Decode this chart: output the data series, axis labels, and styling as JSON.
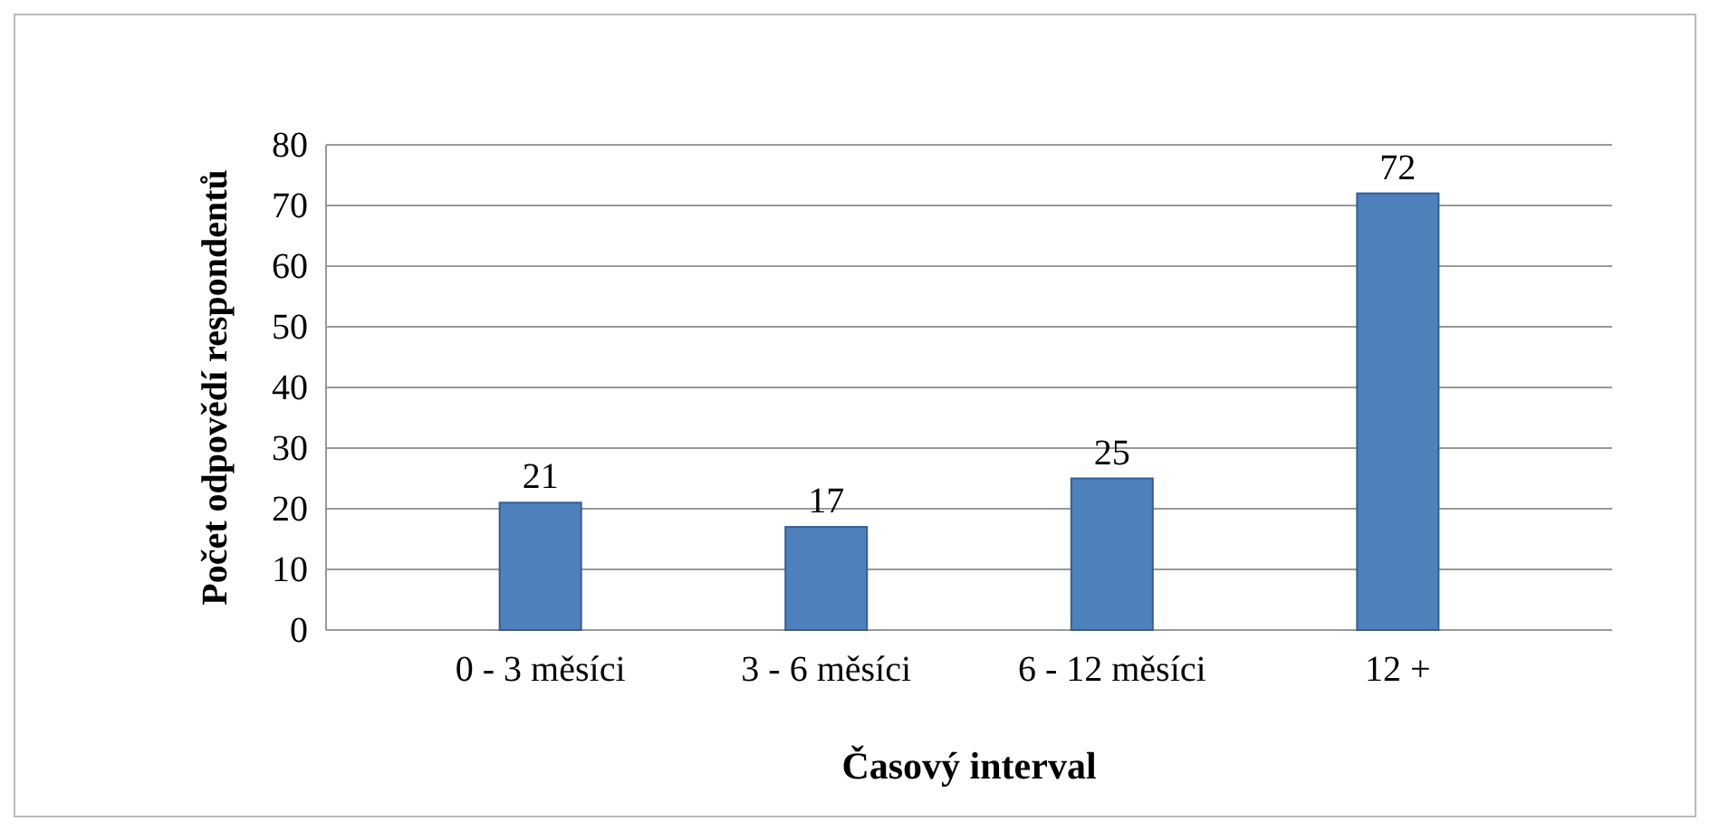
{
  "chart_data": {
    "type": "bar",
    "xlabel": "Časový interval",
    "ylabel": "Počet odpovědí respondentů",
    "categories": [
      "0 - 3 měsíci",
      "3 - 6 měsíci",
      "6 - 12 měsíci",
      "12 +"
    ],
    "values": [
      21,
      17,
      25,
      72
    ],
    "color": "#4f81bd",
    "ylim": [
      0,
      80
    ],
    "yticks": [
      0,
      10,
      20,
      30,
      40,
      50,
      60,
      70,
      80
    ],
    "grid": "y",
    "data_labels": true
  }
}
